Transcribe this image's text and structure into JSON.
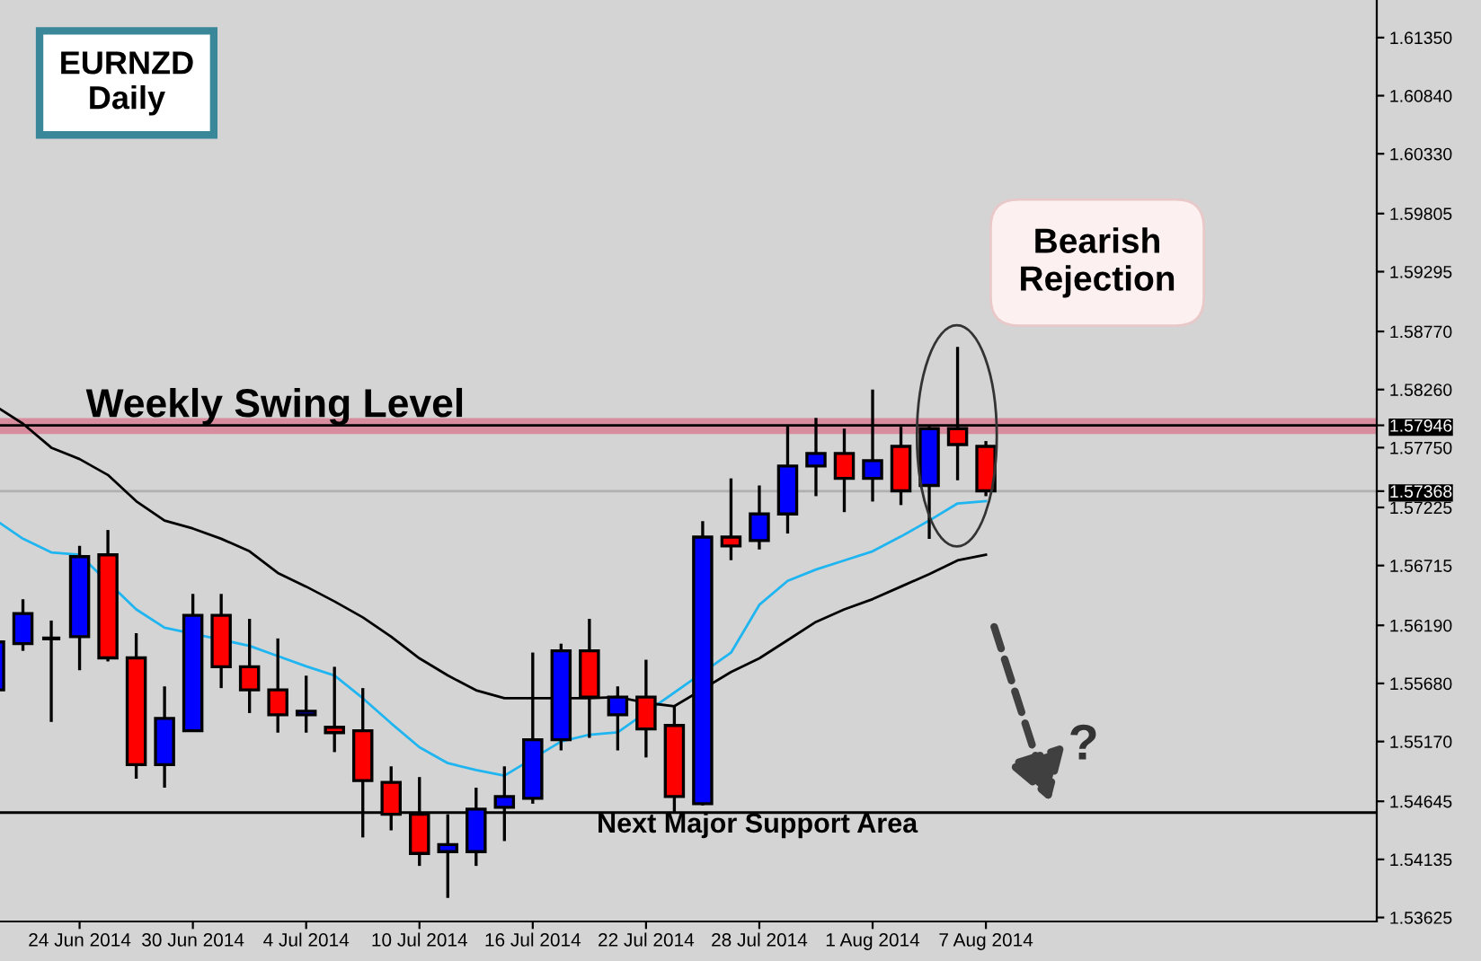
{
  "chart_data": {
    "type": "candlestick",
    "title": "EURNZD\nDaily",
    "categories": [
      null,
      null,
      null,
      "24 Jun 2014",
      null,
      null,
      null,
      "30 Jun 2014",
      null,
      null,
      null,
      "4 Jul 2014",
      null,
      null,
      null,
      "10 Jul 2014",
      null,
      null,
      null,
      "16 Jul 2014",
      null,
      null,
      null,
      "22 Jul 2014",
      null,
      null,
      null,
      "28 Jul 2014",
      null,
      null,
      null,
      "1 Aug 2014",
      null,
      null,
      null,
      "7 Aug 2014"
    ],
    "ohlc": [
      [
        1.55623,
        1.56044,
        1.55623,
        1.56044
      ],
      [
        1.56029,
        1.56419,
        1.55966,
        1.56294
      ],
      [
        1.56075,
        1.56232,
        1.55342,
        1.56075
      ],
      [
        1.56091,
        1.56887,
        1.55795,
        1.56793
      ],
      [
        1.56809,
        1.57027,
        1.55873,
        1.55904
      ],
      [
        1.55904,
        1.56122,
        1.54843,
        1.54967
      ],
      [
        1.54967,
        1.55654,
        1.54765,
        1.55373
      ],
      [
        1.55264,
        1.56466,
        1.55264,
        1.56278
      ],
      [
        1.56278,
        1.56466,
        1.55639,
        1.55826
      ],
      [
        1.55826,
        1.56247,
        1.5542,
        1.55623
      ],
      [
        1.55623,
        1.56075,
        1.55248,
        1.55404
      ],
      [
        1.55404,
        1.55748,
        1.55248,
        1.55436
      ],
      [
        1.55295,
        1.55826,
        1.55077,
        1.55248
      ],
      [
        1.55264,
        1.55639,
        1.54328,
        1.54827
      ],
      [
        1.54811,
        1.54952,
        1.5439,
        1.54531
      ],
      [
        1.54531,
        1.54858,
        1.54078,
        1.54187
      ],
      [
        1.54203,
        1.54531,
        1.53797,
        1.54265
      ],
      [
        1.54203,
        1.54765,
        1.54078,
        1.54577
      ],
      [
        1.54593,
        1.54952,
        1.54296,
        1.54687
      ],
      [
        1.54671,
        1.55951,
        1.54624,
        1.55186
      ],
      [
        1.55186,
        1.56029,
        1.55092,
        1.55966
      ],
      [
        1.55966,
        1.56247,
        1.55202,
        1.5556
      ],
      [
        1.55404,
        1.55654,
        1.55092,
        1.5556
      ],
      [
        1.5556,
        1.55888,
        1.5503,
        1.5528
      ],
      [
        1.55311,
        1.55482,
        1.54546,
        1.54687
      ],
      [
        1.54624,
        1.57105,
        1.54609,
        1.56965
      ],
      [
        1.56965,
        1.5748,
        1.56762,
        1.56887
      ],
      [
        1.56934,
        1.57418,
        1.56856,
        1.57168
      ],
      [
        1.57168,
        1.57948,
        1.56996,
        1.57589
      ],
      [
        1.57589,
        1.58011,
        1.57324,
        1.57699
      ],
      [
        1.57699,
        1.57917,
        1.57184,
        1.5748
      ],
      [
        1.5748,
        1.5826,
        1.57277,
        1.57636
      ],
      [
        1.57761,
        1.57933,
        1.57246,
        1.57371
      ],
      [
        1.57418,
        1.57933,
        1.56949,
        1.57917
      ],
      [
        1.57917,
        1.58635,
        1.57464,
        1.57777
      ],
      [
        1.57761,
        1.57808,
        1.57324,
        1.57371
      ]
    ],
    "colors": [
      "#0000ff",
      "#0000ff",
      "#000000",
      "#0000ff",
      "#ff0000",
      "#ff0000",
      "#0000ff",
      "#0000ff",
      "#ff0000",
      "#ff0000",
      "#ff0000",
      "#0000ff",
      "#ff0000",
      "#ff0000",
      "#ff0000",
      "#ff0000",
      "#0000ff",
      "#0000ff",
      "#0000ff",
      "#0000ff",
      "#0000ff",
      "#ff0000",
      "#0000ff",
      "#ff0000",
      "#ff0000",
      "#0000ff",
      "#ff0000",
      "#0000ff",
      "#0000ff",
      "#0000ff",
      "#ff0000",
      "#0000ff",
      "#ff0000",
      "#0000ff",
      "#ff0000",
      "#ff0000"
    ],
    "series": [
      {
        "type": "line",
        "color": "#1fb5f0",
        "values": [
          1.5712,
          1.5695,
          1.5683,
          1.5681,
          null,
          1.5633,
          1.5617,
          null,
          null,
          1.5601,
          1.5592,
          1.5583,
          1.5575,
          1.5555,
          1.5533,
          1.5512,
          1.5498,
          1.5492,
          1.5487,
          null,
          1.5517,
          1.5523,
          1.5525,
          null,
          null,
          null,
          1.5595,
          1.5637,
          1.5658,
          1.5668,
          1.5676,
          1.5684,
          1.5697,
          1.5711,
          1.5726,
          1.5728
        ]
      },
      {
        "type": "line",
        "color": "#000000",
        "values": [
          1.5812,
          1.5796,
          1.5775,
          1.5765,
          1.5751,
          1.5728,
          1.5711,
          1.5704,
          1.5695,
          1.5684,
          1.5665,
          1.5653,
          1.564,
          1.5626,
          1.5609,
          1.559,
          1.5575,
          1.5562,
          1.5555,
          1.5555,
          null,
          1.5555,
          1.5556,
          1.5551,
          1.5548,
          null,
          1.5578,
          1.559,
          1.5606,
          1.5622,
          1.5633,
          1.5642,
          1.5653,
          1.5664,
          1.5676,
          1.5681
        ]
      }
    ],
    "ylim": [
      1.5359,
      1.6168
    ],
    "yticks": [
      1.53625,
      1.54135,
      1.54645,
      {
        "value": 1.5517,
        "label": "1.55170"
      },
      {
        "value": 1.5568,
        "label": "1.55680"
      },
      {
        "value": 1.5619,
        "label": "1.56190"
      },
      1.56715,
      1.57225,
      1.57368,
      {
        "value": 1.5775,
        "label": "1.57750"
      },
      1.57946,
      {
        "value": 1.5826,
        "label": "1.58260"
      },
      {
        "value": 1.5877,
        "label": "1.58770"
      },
      1.59295,
      1.59805,
      {
        "value": 1.6033,
        "label": "1.60330"
      },
      {
        "value": 1.6084,
        "label": "1.60840"
      },
      {
        "value": 1.6135,
        "label": "1.61350"
      }
    ],
    "ref_lines": [
      {
        "axis": "y",
        "value": 1.57946,
        "label": "Weekly Swing Level",
        "color": "#000000"
      },
      {
        "axis": "y",
        "value": 1.57368,
        "label": null,
        "color": "#b0b0b0"
      },
      {
        "axis": "y",
        "value": 1.54546,
        "label": "Next Major Support Area",
        "color": "#000000"
      }
    ],
    "bands": [
      {
        "axis": "y",
        "from": 1.5787,
        "to": 1.5801,
        "label": null,
        "color": "#d9768e"
      }
    ],
    "annotations": [
      "Bearish\nRejection",
      "?"
    ]
  }
}
